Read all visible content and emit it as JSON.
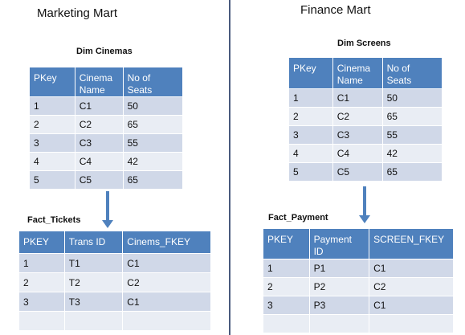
{
  "marketing": {
    "title": "Marketing Mart",
    "dim": {
      "title": "Dim Cinemas",
      "headers": [
        "PKey",
        "Cinema Name",
        "No of Seats"
      ],
      "rows": [
        [
          "1",
          "C1",
          "50"
        ],
        [
          "2",
          "C2",
          "65"
        ],
        [
          "3",
          "C3",
          "55"
        ],
        [
          "4",
          "C4",
          "42"
        ],
        [
          "5",
          "C5",
          "65"
        ]
      ]
    },
    "fact": {
      "title": "Fact_Tickets",
      "headers": [
        "PKEY",
        "Trans ID",
        "Cinems_FKEY"
      ],
      "rows": [
        [
          "1",
          "T1",
          "C1"
        ],
        [
          "2",
          "T2",
          "C2"
        ],
        [
          "3",
          "T3",
          "C1"
        ]
      ]
    }
  },
  "finance": {
    "title": "Finance Mart",
    "dim": {
      "title": "Dim Screens",
      "headers": [
        "PKey",
        "Cinema Name",
        "No of Seats"
      ],
      "rows": [
        [
          "1",
          "C1",
          "50"
        ],
        [
          "2",
          "C2",
          "65"
        ],
        [
          "3",
          "C3",
          "55"
        ],
        [
          "4",
          "C4",
          "42"
        ],
        [
          "5",
          "C5",
          "65"
        ]
      ]
    },
    "fact": {
      "title": "Fact_Payment",
      "headers": [
        "PKEY",
        "Payment ID",
        "SCREEN_FKEY"
      ],
      "rows": [
        [
          "1",
          "P1",
          "C1"
        ],
        [
          "2",
          "P2",
          "C2"
        ],
        [
          "3",
          "P3",
          "C1"
        ]
      ]
    }
  },
  "colors": {
    "header_fill": "#4f81bd",
    "row_odd": "#d0d8e8",
    "row_even": "#e9edf4",
    "divider": "#4a5b7e"
  }
}
